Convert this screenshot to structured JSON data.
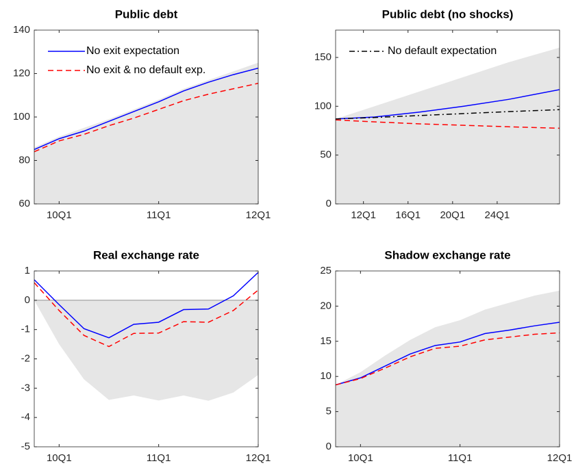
{
  "chart_data": [
    {
      "type": "line",
      "title": "Public debt",
      "categories": [
        null,
        "10Q1",
        null,
        null,
        null,
        "11Q1",
        null,
        null,
        null,
        "12Q1"
      ],
      "ylim": [
        60,
        140
      ],
      "yticks": [
        60,
        80,
        100,
        120,
        140
      ],
      "band": {
        "color": "#e6e6e6",
        "upper": [
          86,
          91,
          95,
          99,
          103.5,
          108,
          113,
          117,
          121,
          125
        ],
        "lower": [
          60,
          60,
          60,
          60,
          60,
          60,
          60,
          60,
          60,
          60
        ]
      },
      "legend": "upper left",
      "series": [
        {
          "name": "No exit expectation",
          "color": "#0000ff",
          "dash": "solid",
          "values": [
            85,
            90,
            93.5,
            98,
            102.5,
            107,
            112,
            116,
            119.5,
            122.5
          ]
        },
        {
          "name": "No exit & no default exp.",
          "color": "#ff0000",
          "dash": "dashed",
          "values": [
            84,
            89,
            92,
            96,
            99.5,
            103.5,
            107.5,
            110.5,
            113,
            115.5
          ]
        }
      ]
    },
    {
      "type": "line",
      "title": "Public debt (no shocks)",
      "x": [
        2009.5,
        2013,
        2017,
        2021,
        2025,
        2029.6
      ],
      "xlim": [
        2009.5,
        2029.6
      ],
      "xticks": [
        {
          "value": 2012,
          "label": "12Q1"
        },
        {
          "value": 2016,
          "label": "16Q1"
        },
        {
          "value": 2020,
          "label": "20Q1"
        },
        {
          "value": 2024,
          "label": "24Q1"
        }
      ],
      "ylim": [
        0,
        178
      ],
      "yticks": [
        0,
        50,
        100,
        150
      ],
      "band": {
        "color": "#e6e6e6",
        "upper": [
          87,
          100,
          115,
          130,
          145,
          160
        ],
        "lower": [
          0,
          0,
          0,
          0,
          0,
          0
        ]
      },
      "legend": "upper left",
      "legend_series": [
        2
      ],
      "series": [
        {
          "color": "#0000ff",
          "dash": "solid",
          "values": [
            87,
            89,
            94,
            100,
            107,
            117
          ]
        },
        {
          "color": "#ff0000",
          "dash": "dashed",
          "values": [
            86,
            84,
            82,
            80.5,
            79,
            77.5
          ]
        },
        {
          "name": "No default expectation",
          "color": "#000000",
          "dash": "dashdot",
          "values": [
            87,
            88.5,
            90.5,
            92.5,
            94.5,
            96.5
          ]
        }
      ]
    },
    {
      "type": "line",
      "title": "Real exchange rate",
      "categories": [
        null,
        "10Q1",
        null,
        null,
        null,
        "11Q1",
        null,
        null,
        null,
        "12Q1"
      ],
      "ylim": [
        -5,
        1
      ],
      "yticks": [
        -5,
        -4,
        -3,
        -2,
        -1,
        0,
        1
      ],
      "zero_line": true,
      "band": {
        "color": "#e6e6e6",
        "upper": [
          0,
          0,
          0,
          0,
          0,
          0,
          0,
          0,
          0,
          0
        ],
        "lower": [
          0,
          -1.5,
          -2.7,
          -3.4,
          -3.25,
          -3.42,
          -3.25,
          -3.43,
          -3.15,
          -2.55
        ]
      },
      "series": [
        {
          "color": "#0000ff",
          "dash": "solid",
          "values": [
            0.7,
            -0.15,
            -0.97,
            -1.28,
            -0.82,
            -0.75,
            -0.32,
            -0.3,
            0.15,
            0.95
          ]
        },
        {
          "color": "#ff0000",
          "dash": "dashed",
          "values": [
            0.6,
            -0.35,
            -1.2,
            -1.58,
            -1.13,
            -1.12,
            -0.73,
            -0.75,
            -0.35,
            0.35
          ]
        }
      ]
    },
    {
      "type": "line",
      "title": "Shadow exchange rate",
      "categories": [
        null,
        "10Q1",
        null,
        null,
        null,
        "11Q1",
        null,
        null,
        null,
        "12Q1"
      ],
      "ylim": [
        0,
        25
      ],
      "yticks": [
        0,
        5,
        10,
        15,
        20,
        25
      ],
      "band": {
        "color": "#e6e6e6",
        "upper": [
          8.8,
          10.6,
          13,
          15.2,
          17,
          18,
          19.5,
          20.5,
          21.5,
          22.2
        ],
        "lower": [
          0,
          0,
          0,
          0,
          0,
          0,
          0,
          0,
          0,
          0
        ]
      },
      "series": [
        {
          "color": "#0000ff",
          "dash": "solid",
          "values": [
            8.8,
            9.8,
            11.5,
            13.2,
            14.4,
            14.9,
            16.1,
            16.6,
            17.2,
            17.7
          ]
        },
        {
          "color": "#ff0000",
          "dash": "dashed",
          "values": [
            8.8,
            9.7,
            11.2,
            12.8,
            14,
            14.3,
            15.2,
            15.6,
            16,
            16.2
          ]
        }
      ]
    }
  ]
}
